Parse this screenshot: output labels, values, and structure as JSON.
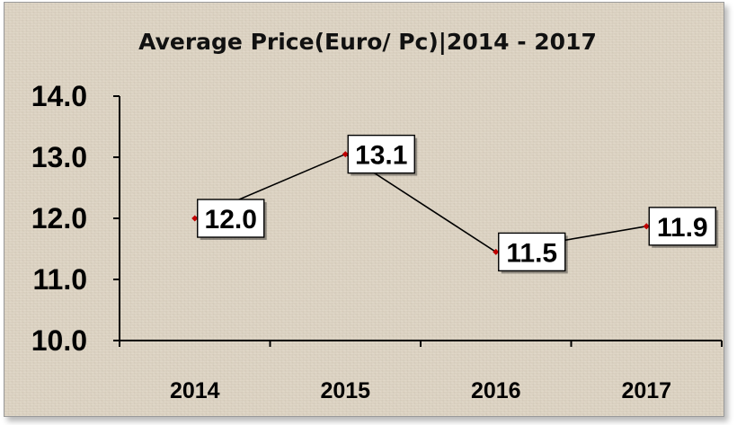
{
  "chart_data": {
    "type": "line",
    "title": "Average Price(Euro/ Pc)|2014 - 2017",
    "xlabel": "",
    "ylabel": "",
    "categories": [
      "2014",
      "2015",
      "2016",
      "2017"
    ],
    "series": [
      {
        "values": [
          12.0,
          13.05,
          11.45,
          11.87
        ],
        "labels": [
          "12.0",
          "13.1",
          "11.5",
          "11.9"
        ]
      }
    ],
    "ylim": [
      10.0,
      14.0
    ],
    "yticks": [
      "10.0",
      "11.0",
      "12.0",
      "13.0",
      "14.0"
    ],
    "grid": false,
    "legend": "none",
    "colors": {
      "line": "#000000",
      "marker": "#c00000",
      "label_box": "#ffffff",
      "background": "#ddd3c2"
    }
  }
}
